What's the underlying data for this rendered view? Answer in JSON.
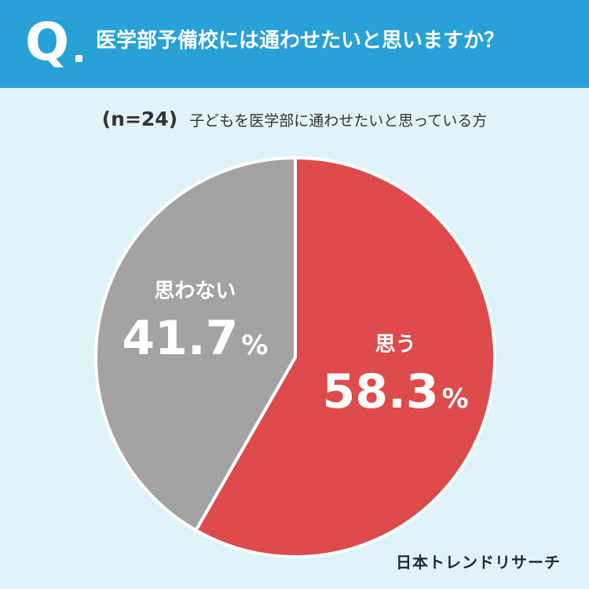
{
  "header": {
    "q_label": "Q",
    "question": "医学部予備校には通わせたいと思いますか？"
  },
  "subtitle": {
    "sample": "(n=24)",
    "text": "子どもを医学部に通わせたいと思っている方"
  },
  "colors": {
    "header_bg": "#28a1d7",
    "page_bg": "#dff3f8",
    "yes": "#dd4b4c",
    "no": "#a3a3a3"
  },
  "chart_data": {
    "type": "pie",
    "title": "医学部予備校には通わせたいと思いますか？",
    "slices": [
      {
        "label": "思う",
        "value": 58.3,
        "value_text": "58.3",
        "unit": "%",
        "color": "#dd4b4c"
      },
      {
        "label": "思わない",
        "value": 41.7,
        "value_text": "41.7",
        "unit": "%",
        "color": "#a3a3a3"
      }
    ],
    "start_angle": "12 o'clock",
    "direction": "clockwise"
  },
  "brand": "日本トレンドリサーチ"
}
